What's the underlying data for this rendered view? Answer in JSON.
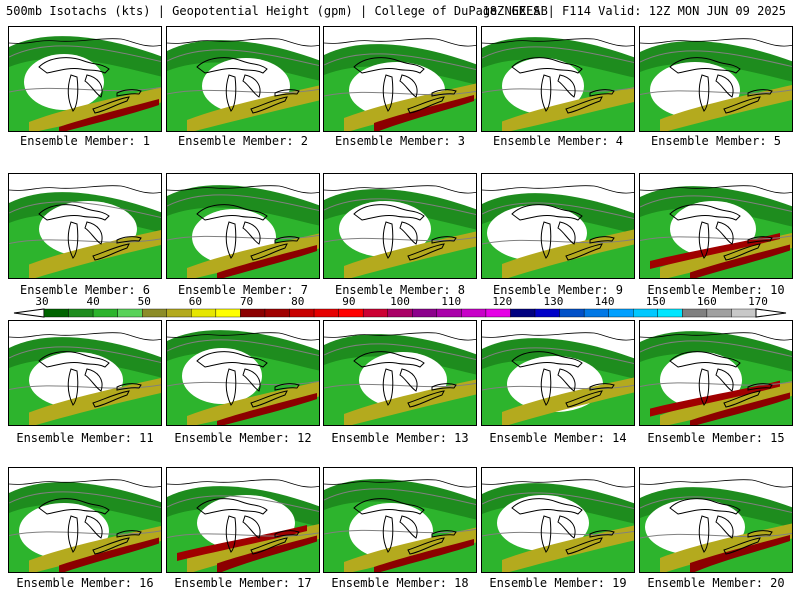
{
  "header": {
    "title": "500mb Isotachs (kts) | Geopotential Height (gpm) | College of DuPage NEXLAB",
    "run_info": "18Z GEFS | F114 Valid: 12Z MON JUN 09 2025"
  },
  "colorbar": {
    "ticks": [
      "30",
      "40",
      "50",
      "60",
      "70",
      "80",
      "90",
      "100",
      "110",
      "120",
      "130",
      "140",
      "150",
      "160",
      "170"
    ],
    "colors": [
      "#006400",
      "#1e8c1e",
      "#2db42d",
      "#5ad25a",
      "#8c8c28",
      "#b4aa1e",
      "#e6e600",
      "#ffff00",
      "#8c0000",
      "#a00000",
      "#c80000",
      "#e60000",
      "#ff0000",
      "#cc0033",
      "#aa0066",
      "#8c008c",
      "#aa00aa",
      "#c800c8",
      "#e600e6",
      "#000080",
      "#0000c8",
      "#0050c8",
      "#0078e6",
      "#00a0ff",
      "#00c8ff",
      "#00e6ff",
      "#808080",
      "#a0a0a0",
      "#c8c8c8"
    ]
  },
  "panels": [
    {
      "label": "Ensemble Member: 1",
      "intensity": 2
    },
    {
      "label": "Ensemble Member: 2",
      "intensity": 1
    },
    {
      "label": "Ensemble Member: 3",
      "intensity": 2
    },
    {
      "label": "Ensemble Member: 4",
      "intensity": 1
    },
    {
      "label": "Ensemble Member: 5",
      "intensity": 1
    },
    {
      "label": "Ensemble Member: 6",
      "intensity": 1
    },
    {
      "label": "Ensemble Member: 7",
      "intensity": 2
    },
    {
      "label": "Ensemble Member: 8",
      "intensity": 1
    },
    {
      "label": "Ensemble Member: 9",
      "intensity": 1
    },
    {
      "label": "Ensemble Member: 10",
      "intensity": 3
    },
    {
      "label": "Ensemble Member: 11",
      "intensity": 1
    },
    {
      "label": "Ensemble Member: 12",
      "intensity": 2
    },
    {
      "label": "Ensemble Member: 13",
      "intensity": 1
    },
    {
      "label": "Ensemble Member: 14",
      "intensity": 1
    },
    {
      "label": "Ensemble Member: 15",
      "intensity": 3
    },
    {
      "label": "Ensemble Member: 16",
      "intensity": 2
    },
    {
      "label": "Ensemble Member: 17",
      "intensity": 3
    },
    {
      "label": "Ensemble Member: 18",
      "intensity": 2
    },
    {
      "label": "Ensemble Member: 19",
      "intensity": 1
    },
    {
      "label": "Ensemble Member: 20",
      "intensity": 2
    }
  ]
}
